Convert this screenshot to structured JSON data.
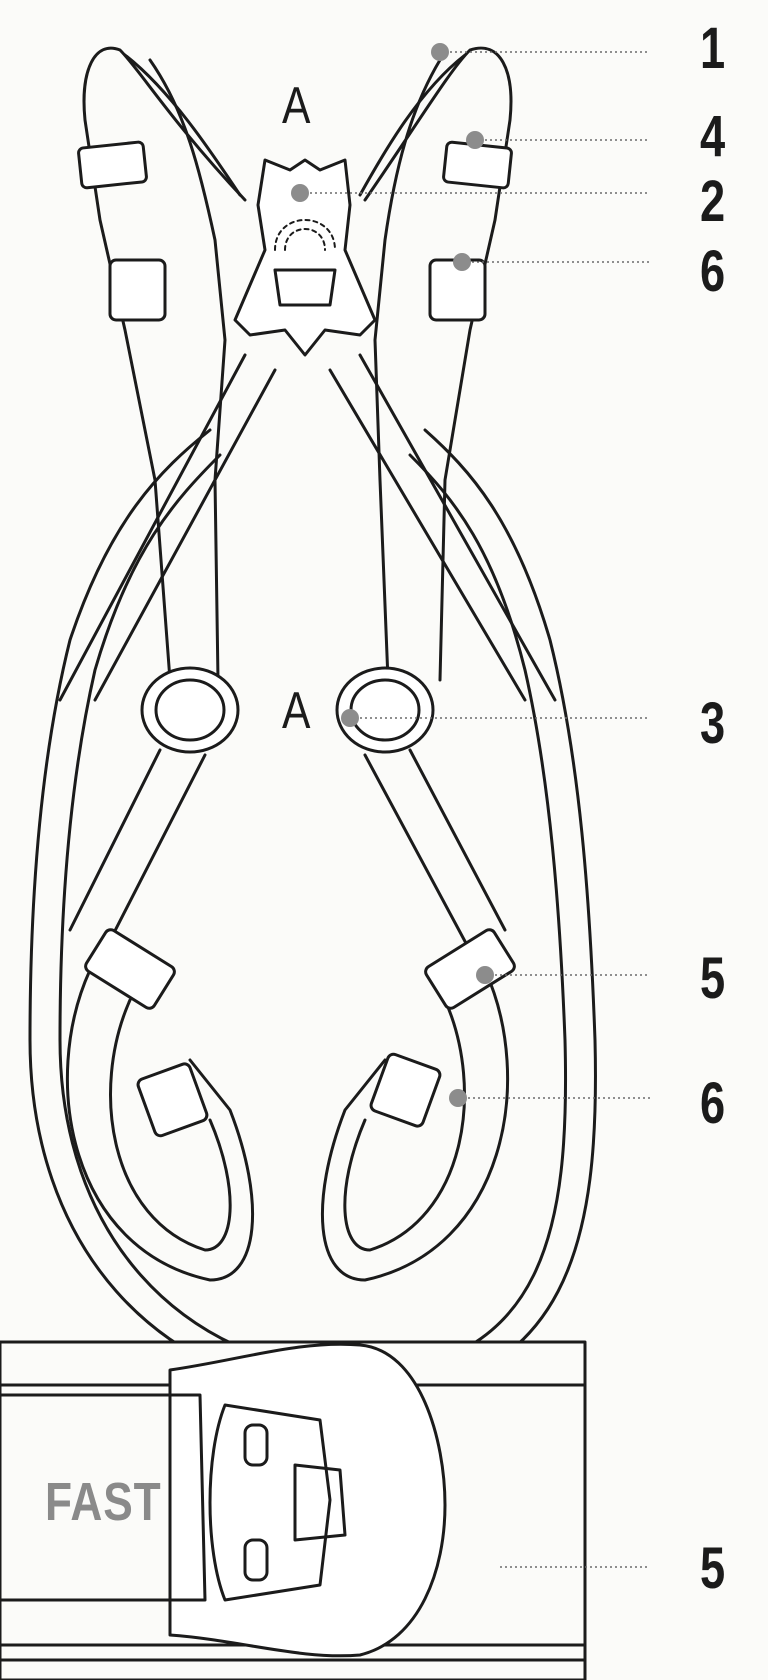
{
  "diagram": {
    "callouts": [
      {
        "label": "1"
      },
      {
        "label": "4"
      },
      {
        "label": "2"
      },
      {
        "label": "6"
      },
      {
        "label": "3"
      },
      {
        "label": "5"
      },
      {
        "label": "6"
      },
      {
        "label": "5"
      }
    ],
    "attachment_labels": [
      "A",
      "A"
    ],
    "buckle_text": "FAST",
    "colors": {
      "line": "#1b1b1b",
      "dot": "#8c8c8c",
      "fill": "#ffffff",
      "fast_text": "#8a8a8a"
    }
  }
}
